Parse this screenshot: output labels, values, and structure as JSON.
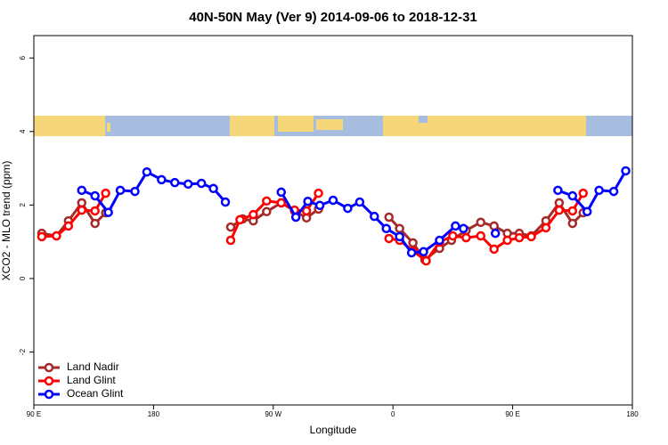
{
  "chart_data": {
    "type": "line",
    "title": "40N-50N May (Ver 9)   2014-09-06 to 2018-12-31",
    "xlabel": "Longitude",
    "ylabel": "XCO2 - MLO trend (ppm)",
    "xlim": [
      90,
      540
    ],
    "ylim": [
      -3.44,
      6.61
    ],
    "xticks": [
      {
        "value": 90,
        "label": "90 E"
      },
      {
        "value": 180,
        "label": "180"
      },
      {
        "value": 270,
        "label": "90 W"
      },
      {
        "value": 360,
        "label": "0"
      },
      {
        "value": 450,
        "label": "90 E"
      },
      {
        "value": 540,
        "label": "180"
      }
    ],
    "yticks": [
      -2,
      0,
      2,
      4,
      6
    ],
    "legend": "bottomleft",
    "series": [
      {
        "name": "Land Nadir",
        "color": "#a52a2a",
        "x": [
          96,
          107,
          116,
          126,
          136,
          144,
          null,
          238,
          247,
          255,
          265,
          276,
          286,
          295,
          304,
          null,
          357,
          365,
          375,
          384,
          395,
          404,
          415,
          426,
          436,
          446,
          455,
          464,
          475,
          485,
          495,
          503
        ],
        "values": [
          1.23,
          1.16,
          1.57,
          2.06,
          1.5,
          1.79,
          null,
          1.4,
          1.62,
          1.57,
          1.82,
          2.06,
          1.84,
          1.65,
          1.89,
          null,
          1.67,
          1.36,
          0.97,
          0.51,
          0.82,
          1.04,
          1.31,
          1.53,
          1.43,
          1.23,
          1.23,
          1.16,
          1.57,
          2.06,
          1.5,
          1.79
        ]
      },
      {
        "name": "Land Glint",
        "color": "#ff0000",
        "x": [
          96,
          107,
          116,
          126,
          136,
          144,
          null,
          238,
          245,
          255,
          265,
          276,
          286,
          295,
          304,
          null,
          357,
          365,
          375,
          385,
          395,
          405,
          415,
          426,
          436,
          446,
          455,
          464,
          475,
          485,
          495,
          503
        ],
        "values": [
          1.14,
          1.16,
          1.43,
          1.86,
          1.84,
          2.32,
          null,
          1.04,
          1.6,
          1.74,
          2.11,
          2.06,
          1.86,
          1.84,
          2.32,
          null,
          1.09,
          1.04,
          0.75,
          0.48,
          0.99,
          1.16,
          1.11,
          1.16,
          0.8,
          1.04,
          1.11,
          1.14,
          1.38,
          1.86,
          1.84,
          2.32
        ]
      },
      {
        "name": "Ocean Glint",
        "color": "#0000ff",
        "x": [
          126,
          136,
          146,
          155,
          166,
          175,
          186,
          196,
          206,
          216,
          225,
          234,
          null,
          276,
          287,
          296,
          305,
          315,
          326,
          335,
          346,
          355,
          365,
          374,
          383,
          395,
          407,
          413,
          null,
          437,
          null,
          484,
          495,
          506,
          515,
          526,
          535
        ],
        "values": [
          2.4,
          2.25,
          1.8,
          2.4,
          2.37,
          2.9,
          2.69,
          2.61,
          2.57,
          2.59,
          2.45,
          2.08,
          null,
          2.35,
          1.67,
          2.1,
          1.99,
          2.13,
          1.91,
          2.08,
          1.69,
          1.36,
          1.14,
          0.7,
          0.73,
          1.04,
          1.43,
          1.36,
          null,
          1.23,
          null,
          2.4,
          2.25,
          1.82,
          2.4,
          2.37,
          2.93
        ]
      }
    ]
  }
}
